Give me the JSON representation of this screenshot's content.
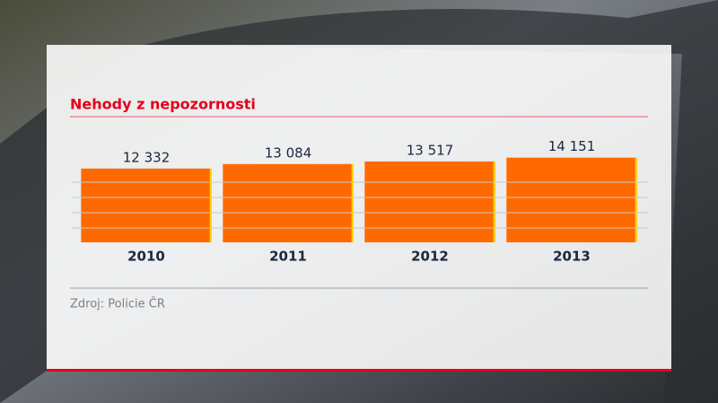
{
  "chart_data": {
    "type": "bar",
    "title": "Nehody z nepozornosti",
    "categories": [
      "2010",
      "2011",
      "2012",
      "2013"
    ],
    "values": [
      12332,
      13084,
      13517,
      14151
    ],
    "value_labels": [
      "12 332",
      "13 084",
      "13 517",
      "14 151"
    ],
    "color": "#ff6a00",
    "ylim": [
      0,
      15000
    ],
    "source": "Zdroj: Policie ČR"
  }
}
